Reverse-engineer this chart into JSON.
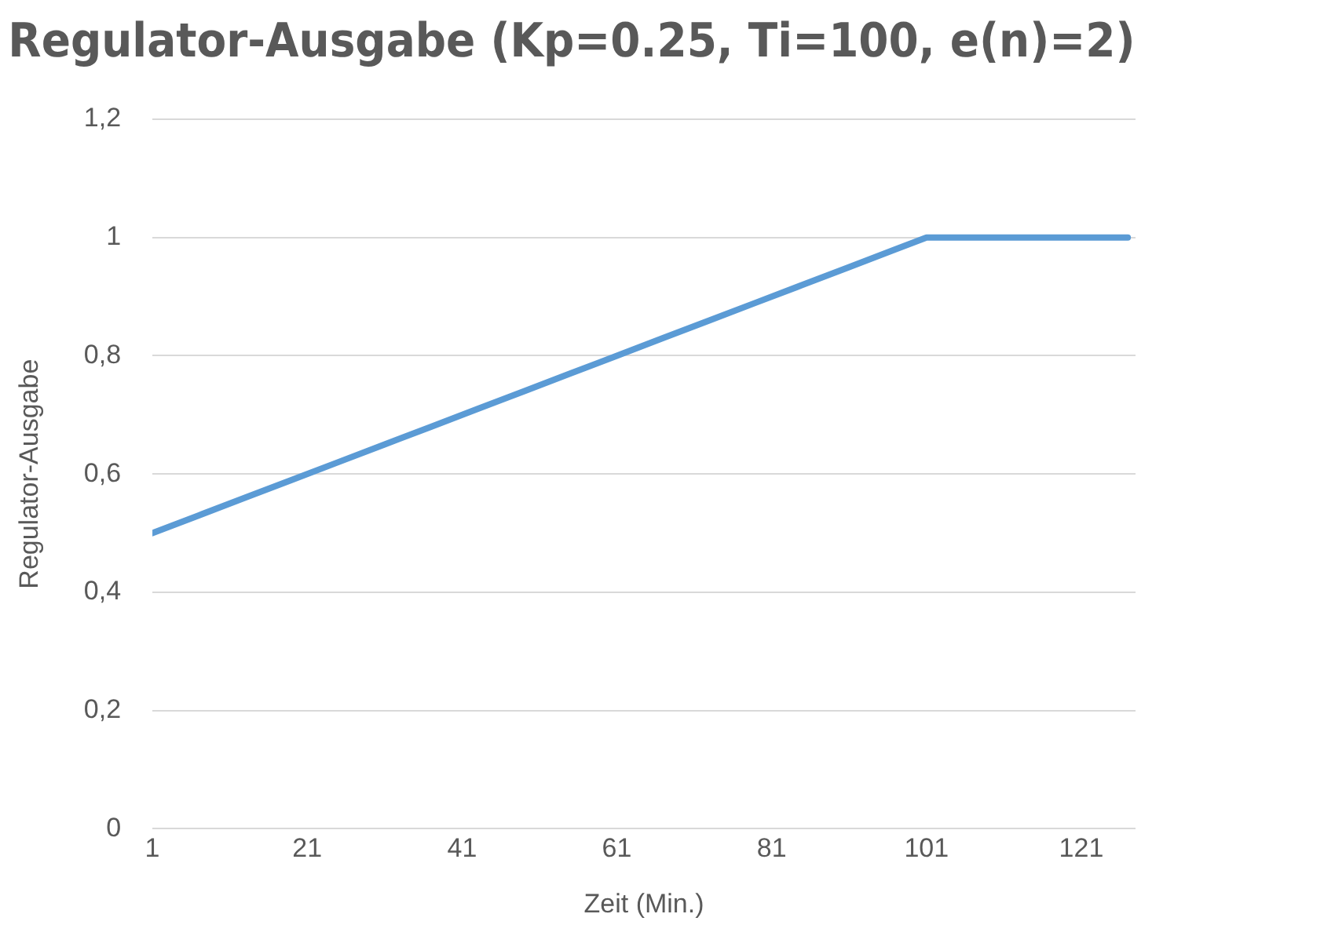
{
  "chart_data": {
    "type": "line",
    "title": "Regulator-Ausgabe (Kp=0.25, Ti=100, e(n)=2)",
    "xlabel": "Zeit (Min.)",
    "ylabel": "Regulator-Ausgabe",
    "x": [
      1,
      7,
      13,
      19,
      25,
      31,
      37,
      43,
      49,
      55,
      61,
      67,
      73,
      79,
      85,
      91,
      97,
      101,
      107,
      113,
      119,
      127
    ],
    "series": [
      {
        "color": "#5b9bd5",
        "values": [
          0.5,
          0.53,
          0.56,
          0.59,
          0.62,
          0.65,
          0.68,
          0.71,
          0.74,
          0.77,
          0.8,
          0.83,
          0.86,
          0.89,
          0.92,
          0.95,
          0.98,
          1,
          1,
          1,
          1,
          1
        ]
      }
    ],
    "xlim": [
      1,
      128
    ],
    "xticks": [
      1,
      21,
      41,
      61,
      81,
      101,
      121
    ],
    "ylim": [
      0,
      1.2
    ],
    "yticks": [
      0,
      {
        "value": 0.2,
        "label": "0,2"
      },
      {
        "value": 0.4,
        "label": "0,4"
      },
      {
        "value": 0.6,
        "label": "0,6"
      },
      {
        "value": 0.8,
        "label": "0,8"
      },
      1,
      {
        "value": 1.2,
        "label": "1,2"
      }
    ],
    "grid": "y",
    "legend": false,
    "marker": "none",
    "line_style": "solid"
  }
}
